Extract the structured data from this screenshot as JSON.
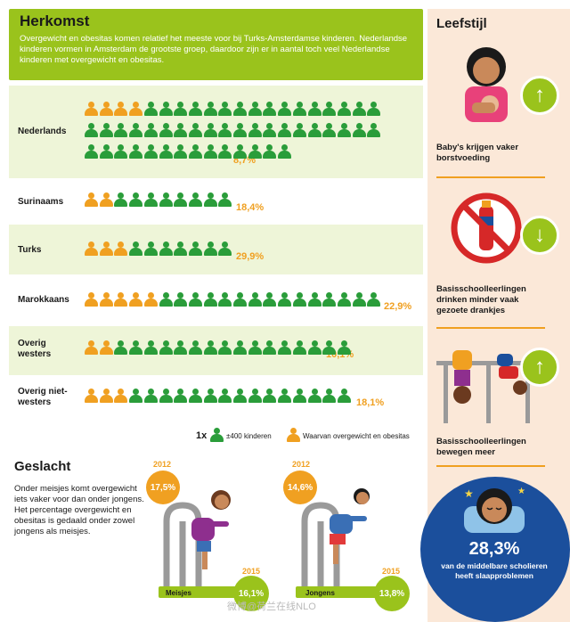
{
  "herkomst": {
    "title": "Herkomst",
    "intro": "Overgewicht en obesitas komen relatief het meeste voor bij Turks-Amsterdamse kinderen. Nederlandse kinderen vormen in Amsterdam de grootste groep, daardoor zijn er in aantal toch veel Nederlandse kinderen met overgewicht en obesitas.",
    "rows": [
      {
        "label": "Nederlands",
        "pct": "8,7%",
        "total": 54,
        "orange": 4
      },
      {
        "label": "Surinaams",
        "pct": "18,4%",
        "total": 10,
        "orange": 2
      },
      {
        "label": "Turks",
        "pct": "29,9%",
        "total": 10,
        "orange": 3
      },
      {
        "label": "Marokkaans",
        "pct": "22,9%",
        "total": 20,
        "orange": 5
      },
      {
        "label": "Overig westers",
        "pct": "10,1%",
        "total": 18,
        "orange": 2
      },
      {
        "label": "Overig niet-westers",
        "pct": "18,1%",
        "total": 18,
        "orange": 3
      }
    ],
    "legend": {
      "multiplier": "1x",
      "person_text": "±400 kinderen",
      "orange_text": "Waarvan overgewicht en obesitas"
    }
  },
  "leefstijl": {
    "title": "Leefstijl",
    "items": [
      {
        "caption": "Baby's krijgen vaker borstvoeding",
        "arrow": "up",
        "icon": "breastfeeding-icon"
      },
      {
        "caption": "Basisschoolleerlingen drinken minder vaak gezoete drankjes",
        "arrow": "down",
        "icon": "no-soda-icon"
      },
      {
        "caption": "Basisschoolleerlingen bewegen meer",
        "arrow": "up",
        "icon": "playing-children-icon"
      }
    ],
    "sleep": {
      "pct": "28,3%",
      "text": "van de middelbare scholieren heeft slaapproblemen"
    }
  },
  "geslacht": {
    "title": "Geslacht",
    "text": "Onder meisjes komt overgewicht iets vaker voor dan onder jongens. Het percentage overgewicht en obesitas is gedaald onder zowel jongens als meisjes.",
    "girls": {
      "label": "Meisjes",
      "year_a": "2012",
      "pct_a": "17,5%",
      "year_b": "2015",
      "pct_b": "16,1%"
    },
    "boys": {
      "label": "Jongens",
      "year_a": "2012",
      "pct_a": "14,6%",
      "year_b": "2015",
      "pct_b": "13,8%"
    }
  },
  "watermark": "微博@荷兰在线NLO",
  "colors": {
    "green": "#2a9d3a",
    "lime": "#9ac31c",
    "orange": "#f0a021",
    "blue": "#1b4f9c",
    "peach": "#fbe8d8"
  }
}
